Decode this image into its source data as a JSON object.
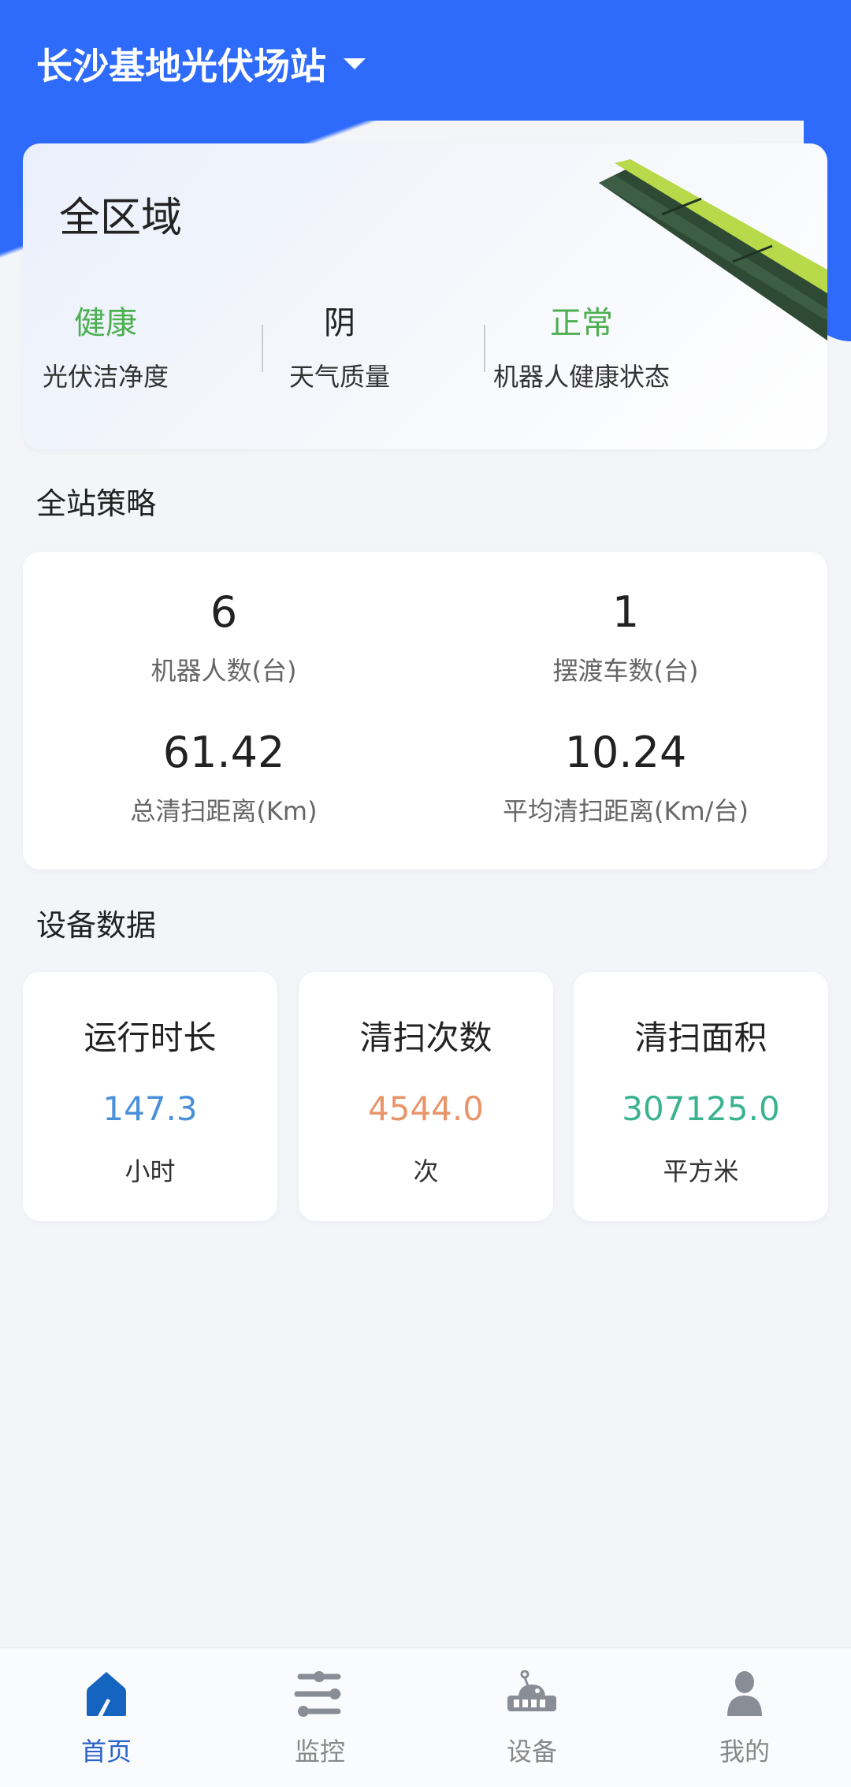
{
  "header": {
    "title": "长沙基地光伏场站",
    "dropdown_icon": "caret-down-icon"
  },
  "overview": {
    "area": "全区域",
    "stats": [
      {
        "value": "健康",
        "label": "光伏洁净度",
        "color": "#4caf50"
      },
      {
        "value": "阴",
        "label": "天气质量",
        "color": "#222222"
      },
      {
        "value": "正常",
        "label": "机器人健康状态",
        "color": "#4caf50"
      }
    ]
  },
  "strategy": {
    "title": "全站策略",
    "items": [
      {
        "value": "6",
        "label": "机器人数(台)"
      },
      {
        "value": "1",
        "label": "摆渡车数(台)"
      },
      {
        "value": "61.42",
        "label": "总清扫距离(Km)"
      },
      {
        "value": "10.24",
        "label": "平均清扫距离(Km/台)"
      }
    ]
  },
  "device": {
    "title": "设备数据",
    "cards": [
      {
        "title": "运行时长",
        "value": "147.3",
        "unit": "小时",
        "color": "#4a90d9"
      },
      {
        "title": "清扫次数",
        "value": "4544.0",
        "unit": "次",
        "color": "#e8956a"
      },
      {
        "title": "清扫面积",
        "value": "307125.0",
        "unit": "平方米",
        "color": "#3bb38f"
      }
    ]
  },
  "tabbar": {
    "active_color": "#1565c0",
    "items": [
      {
        "label": "首页",
        "icon": "home-icon",
        "active": true
      },
      {
        "label": "监控",
        "icon": "sliders-icon",
        "active": false
      },
      {
        "label": "设备",
        "icon": "robot-icon",
        "active": false
      },
      {
        "label": "我的",
        "icon": "user-icon",
        "active": false
      }
    ]
  }
}
